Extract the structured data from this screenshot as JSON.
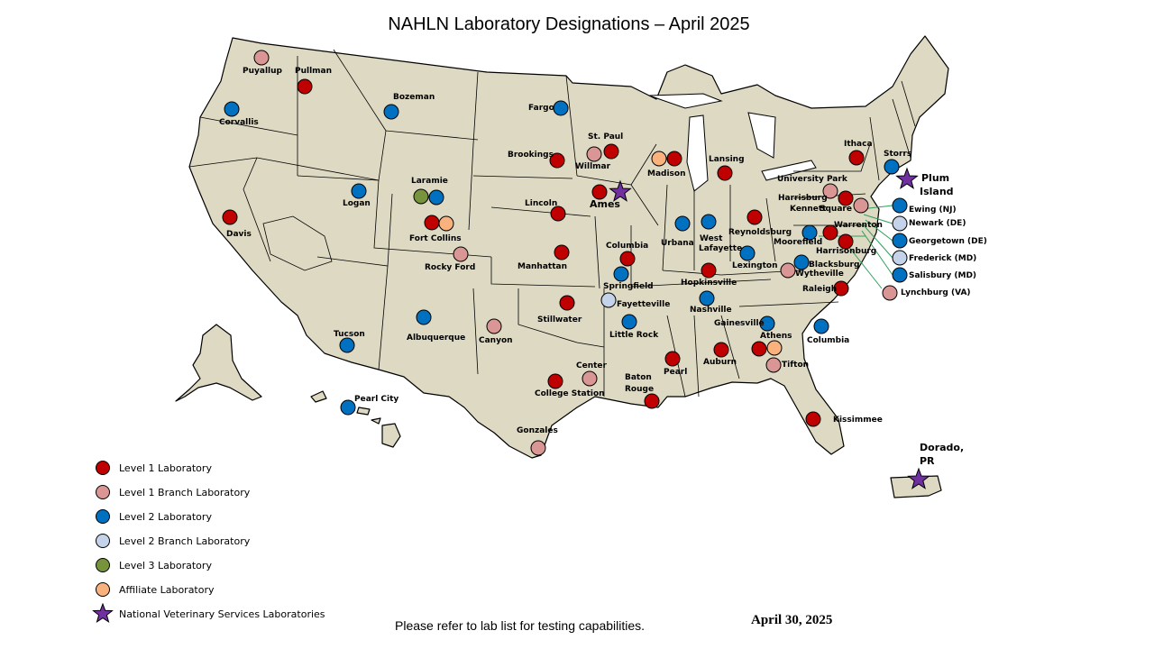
{
  "title": "NAHLN Laboratory Designations – April 2025",
  "colors": {
    "level1": "#c00000",
    "level1_branch": "#d99694",
    "level2": "#0070c0",
    "level2_branch": "#c5d3ea",
    "level3": "#77933c",
    "affiliate": "#f9b27d",
    "nvsl": "#7030a0",
    "land": "#ddd9c3"
  },
  "legend": [
    {
      "key": "level1",
      "label": "Level 1 Laboratory"
    },
    {
      "key": "level1_branch",
      "label": "Level 1 Branch Laboratory"
    },
    {
      "key": "level2",
      "label": "Level 2 Laboratory"
    },
    {
      "key": "level2_branch",
      "label": "Level 2 Branch Laboratory"
    },
    {
      "key": "level3",
      "label": "Level 3 Laboratory"
    },
    {
      "key": "affiliate",
      "label": "Affiliate Laboratory"
    },
    {
      "key": "nvsl",
      "label": "National Veterinary Services Laboratories"
    }
  ],
  "labs": [
    {
      "name": "Puyallup",
      "type": "level1_branch"
    },
    {
      "name": "Pullman",
      "type": "level1"
    },
    {
      "name": "Corvallis",
      "type": "level2"
    },
    {
      "name": "Bozeman",
      "type": "level2"
    },
    {
      "name": "Davis",
      "type": "level1"
    },
    {
      "name": "Logan",
      "type": "level2"
    },
    {
      "name": "Laramie",
      "type": "level3"
    },
    {
      "name": "Laramie",
      "type": "level2"
    },
    {
      "name": "Fort Collins",
      "type": "level1"
    },
    {
      "name": "Fort Collins",
      "type": "affiliate"
    },
    {
      "name": "Rocky Ford",
      "type": "level1_branch"
    },
    {
      "name": "Tucson",
      "type": "level2"
    },
    {
      "name": "Albuquerque",
      "type": "level2"
    },
    {
      "name": "Pearl City",
      "type": "level2"
    },
    {
      "name": "Fargo",
      "type": "level2"
    },
    {
      "name": "St. Paul",
      "type": "level1"
    },
    {
      "name": "Willmar",
      "type": "level1_branch"
    },
    {
      "name": "Brookings",
      "type": "level1"
    },
    {
      "name": "Ames",
      "type": "level1"
    },
    {
      "name": "Lincoln",
      "type": "level1"
    },
    {
      "name": "Manhattan",
      "type": "level1"
    },
    {
      "name": "Stillwater",
      "type": "level1"
    },
    {
      "name": "Canyon",
      "type": "level1_branch"
    },
    {
      "name": "College Station",
      "type": "level1"
    },
    {
      "name": "Center",
      "type": "level1_branch"
    },
    {
      "name": "Gonzales",
      "type": "level1_branch"
    },
    {
      "name": "Columbia",
      "type": "level1"
    },
    {
      "name": "Springfield",
      "type": "level2"
    },
    {
      "name": "Fayetteville",
      "type": "level2_branch"
    },
    {
      "name": "Little Rock",
      "type": "level2"
    },
    {
      "name": "Baton Rouge",
      "type": "level1"
    },
    {
      "name": "Madison",
      "type": "affiliate"
    },
    {
      "name": "Madison",
      "type": "level1"
    },
    {
      "name": "Lansing",
      "type": "level1"
    },
    {
      "name": "Urbana",
      "type": "level2"
    },
    {
      "name": "West Lafayette",
      "type": "level2"
    },
    {
      "name": "Reynoldsburg",
      "type": "level1"
    },
    {
      "name": "Lexington",
      "type": "level2"
    },
    {
      "name": "Hopkinsville",
      "type": "level1"
    },
    {
      "name": "Nashville",
      "type": "level2"
    },
    {
      "name": "Pearl",
      "type": "level1"
    },
    {
      "name": "Auburn",
      "type": "level1"
    },
    {
      "name": "Gainesville",
      "type": "level2"
    },
    {
      "name": "Athens",
      "type": "level1"
    },
    {
      "name": "Athens",
      "type": "affiliate"
    },
    {
      "name": "Tifton",
      "type": "level1_branch"
    },
    {
      "name": "Kissimmee",
      "type": "level1"
    },
    {
      "name": "Columbia",
      "type": "level2"
    },
    {
      "name": "Raleigh",
      "type": "level1"
    },
    {
      "name": "Blacksburg",
      "type": "level2"
    },
    {
      "name": "Wytheville",
      "type": "level1_branch"
    },
    {
      "name": "Moorefield",
      "type": "level2"
    },
    {
      "name": "Warrenton",
      "type": "level1"
    },
    {
      "name": "Harrisonburg",
      "type": "level1"
    },
    {
      "name": "University Park",
      "type": "level1_branch"
    },
    {
      "name": "Harrisburg",
      "type": "level1"
    },
    {
      "name": "Kennett Square",
      "type": "level1_branch"
    },
    {
      "name": "Ithaca",
      "type": "level1"
    },
    {
      "name": "Storrs",
      "type": "level2"
    },
    {
      "name": "Ewing (NJ)",
      "type": "level2"
    },
    {
      "name": "Newark (DE)",
      "type": "level2_branch"
    },
    {
      "name": "Georgetown (DE)",
      "type": "level2"
    },
    {
      "name": "Frederick (MD)",
      "type": "level2_branch"
    },
    {
      "name": "Salisbury (MD)",
      "type": "level2"
    },
    {
      "name": "Lynchburg (VA)",
      "type": "level1_branch"
    }
  ],
  "nvsl_sites": [
    "Ames",
    "Plum Island",
    "Dorado, PR"
  ],
  "map_labels": {
    "harrisburg_part": "Harrisburg",
    "kennett_part": "Kennett",
    "square_part": "Square",
    "west_part": "West",
    "lafayette_part": "Lafayette",
    "baton_part": "Baton",
    "rouge_part": "Rouge",
    "plum_part": "Plum",
    "island_part": "Island",
    "dorado_part": "Dorado,",
    "pr_part": "PR"
  },
  "footnote": "Please refer to lab list for testing capabilities.",
  "date": "April 30, 2025"
}
